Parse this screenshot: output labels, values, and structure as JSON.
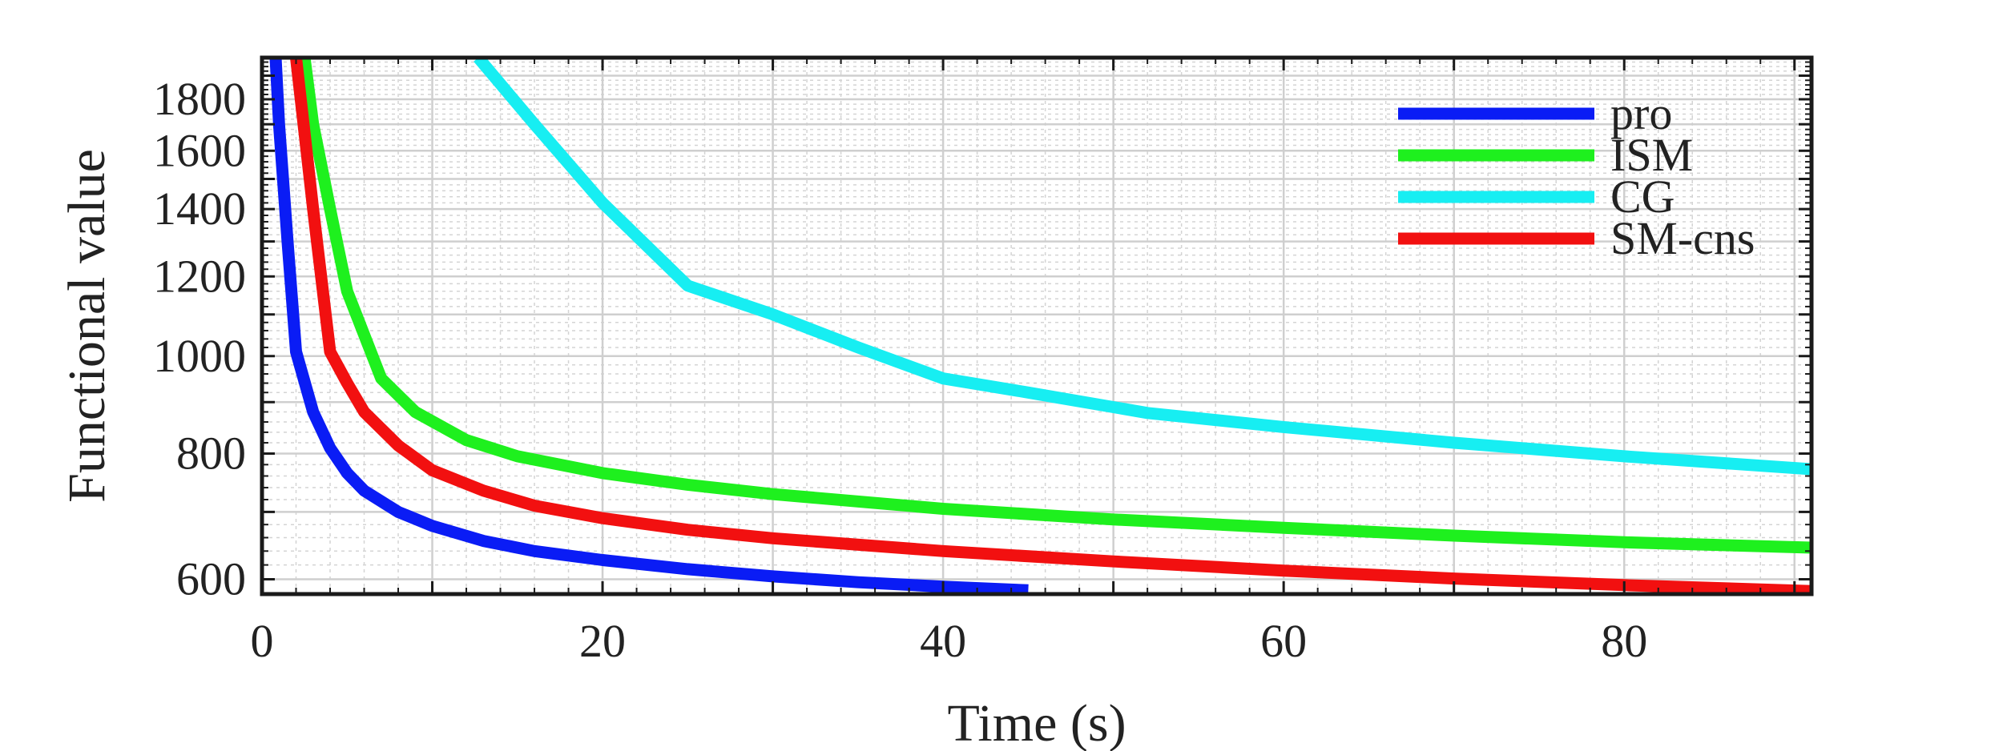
{
  "chart_data": {
    "type": "line",
    "title": "",
    "xlabel": "Time (s)",
    "ylabel": "Functional value",
    "xlim": [
      0,
      91
    ],
    "ylim": [
      580,
      1980
    ],
    "yscale": "log",
    "grid": true,
    "x_ticks": [
      0,
      20,
      40,
      60,
      80
    ],
    "x_tick_labels": [
      "0",
      "20",
      "40",
      "60",
      "80"
    ],
    "y_ticks": [
      600,
      800,
      1000,
      1200,
      1400,
      1600,
      1800
    ],
    "y_tick_labels": [
      "600",
      "800",
      "1000",
      "1200",
      "1400",
      "1600",
      "1800"
    ],
    "legend_position": "top-right",
    "series": [
      {
        "name": "pro",
        "color": "#0a1cf5",
        "x": [
          0.8,
          1,
          1.5,
          2,
          3,
          4,
          5,
          6,
          8,
          10,
          13,
          16,
          20,
          25,
          30,
          35,
          40,
          45
        ],
        "y": [
          1980,
          1700,
          1300,
          1010,
          880,
          810,
          765,
          735,
          700,
          678,
          655,
          640,
          627,
          614,
          604,
          596,
          590,
          585
        ]
      },
      {
        "name": "ISM",
        "color": "#1ef01e",
        "x": [
          2.5,
          3,
          4,
          5,
          7,
          9,
          12,
          15,
          20,
          25,
          30,
          40,
          50,
          60,
          70,
          80,
          91
        ],
        "y": [
          1980,
          1700,
          1400,
          1160,
          950,
          880,
          825,
          795,
          765,
          745,
          729,
          705,
          688,
          675,
          663,
          653,
          645
        ]
      },
      {
        "name": "CG",
        "color": "#17eef2",
        "x": [
          12.7,
          16,
          20,
          25,
          30,
          35,
          40,
          45,
          52,
          60,
          70,
          80,
          91
        ],
        "y": [
          1980,
          1700,
          1420,
          1175,
          1100,
          1020,
          950,
          920,
          878,
          850,
          820,
          795,
          772
        ]
      },
      {
        "name": "SM-cns",
        "color": "#f21010",
        "x": [
          2,
          3,
          4,
          5,
          6,
          8,
          10,
          13,
          16,
          20,
          25,
          30,
          40,
          50,
          60,
          70,
          80,
          91
        ],
        "y": [
          1980,
          1400,
          1010,
          940,
          880,
          815,
          770,
          735,
          710,
          690,
          672,
          659,
          640,
          625,
          612,
          601,
          592,
          584
        ]
      }
    ]
  }
}
